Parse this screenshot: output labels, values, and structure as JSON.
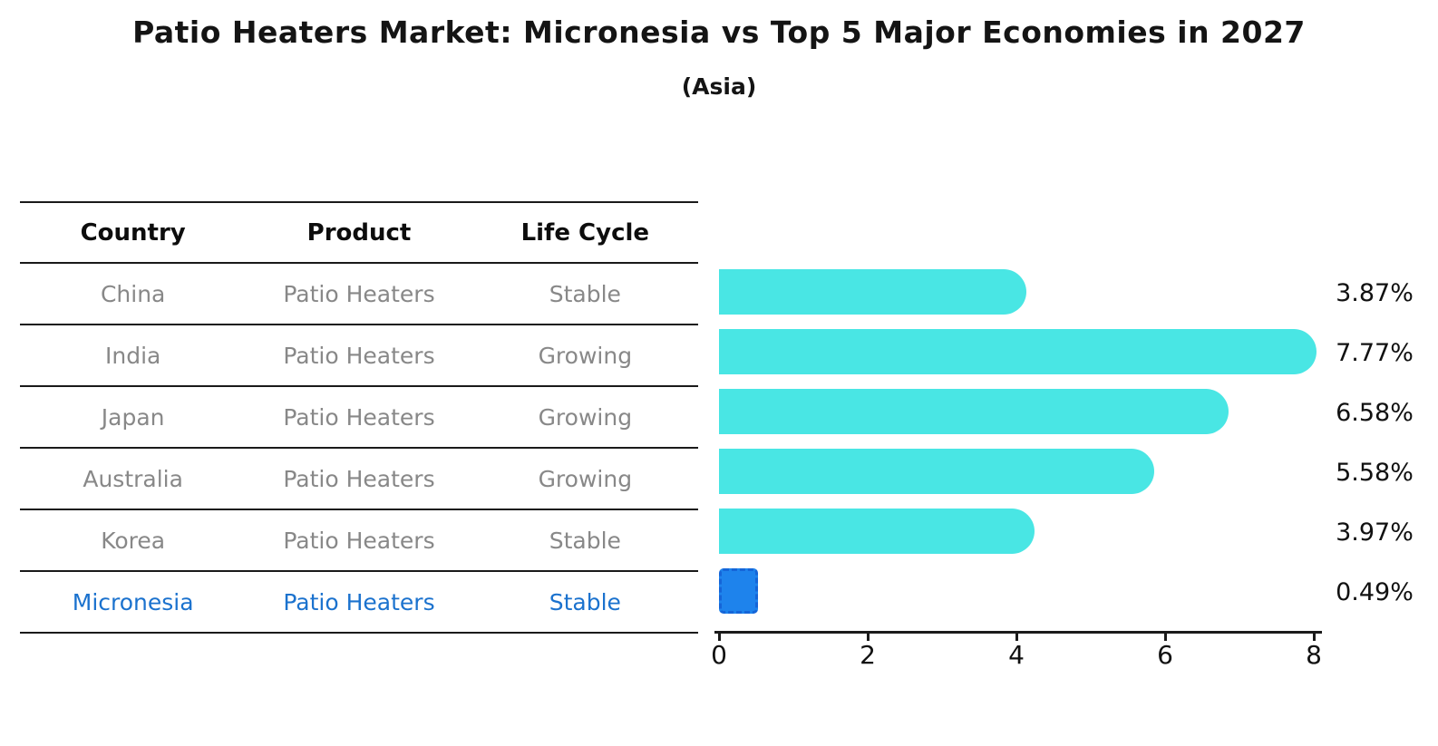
{
  "header": {
    "title": "Patio Heaters Market: Micronesia vs Top 5 Major Economies in 2027",
    "subtitle": "(Asia)"
  },
  "table": {
    "columns": [
      "Country",
      "Product",
      "Life Cycle"
    ],
    "rows": [
      {
        "country": "China",
        "product": "Patio Heaters",
        "life_cycle": "Stable"
      },
      {
        "country": "India",
        "product": "Patio Heaters",
        "life_cycle": "Growing"
      },
      {
        "country": "Japan",
        "product": "Patio Heaters",
        "life_cycle": "Growing"
      },
      {
        "country": "Australia",
        "product": "Patio Heaters",
        "life_cycle": "Growing"
      },
      {
        "country": "Korea",
        "product": "Patio Heaters",
        "life_cycle": "Stable"
      },
      {
        "country": "Micronesia",
        "product": "Patio Heaters",
        "life_cycle": "Stable"
      }
    ]
  },
  "chart_data": {
    "type": "bar",
    "orientation": "horizontal",
    "title": "Patio Heaters Market: Micronesia vs Top 5 Major Economies in 2027",
    "subtitle": "(Asia)",
    "categories": [
      "China",
      "India",
      "Japan",
      "Australia",
      "Korea",
      "Micronesia"
    ],
    "values": [
      3.87,
      7.77,
      6.58,
      5.58,
      3.97,
      0.49
    ],
    "value_labels": [
      "3.87%",
      "7.77%",
      "6.58%",
      "5.58%",
      "3.97%",
      "0.49%"
    ],
    "x_ticks": [
      "0",
      "2",
      "4",
      "6",
      "8"
    ],
    "xlim": [
      0,
      8
    ],
    "grid": false,
    "legend": "none",
    "highlight_index": 5
  },
  "colors": {
    "bar-color": "#49E6E4",
    "hl-bar": "#1E83EC",
    "hl-border": "#1565D8",
    "hl-text": "#1B72CE",
    "muted-text": "#888888",
    "line-color": "#1A1A1A"
  }
}
